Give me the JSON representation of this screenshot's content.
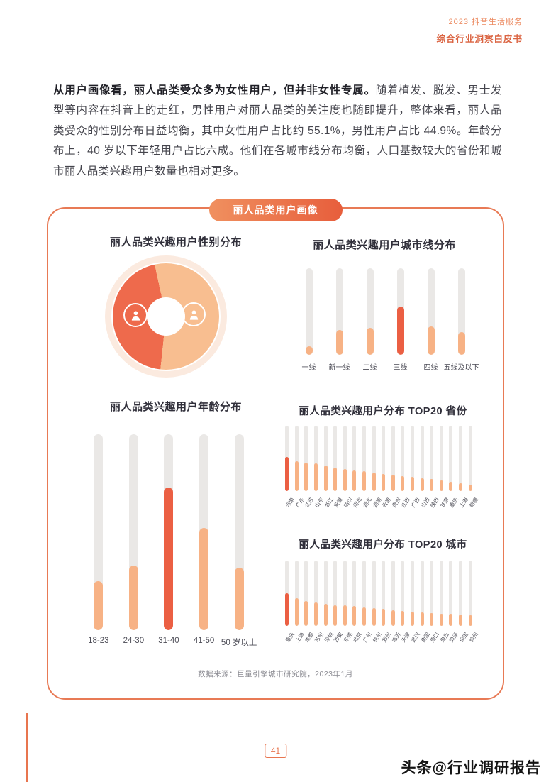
{
  "header": {
    "line1": "2023 抖音生活服务",
    "line2": "综合行业洞察白皮书"
  },
  "paragraph": {
    "lead": "从用户画像看，丽人品类受众多为女性用户，但并非女性专属。",
    "body": "随着植发、脱发、男士发型等内容在抖音上的走红，男性用户对丽人品类的关注度也随即提升，整体来看，丽人品类受众的性别分布日益均衡，其中女性用户占比约 55.1%，男性用户占比 44.9%。年龄分布上，40 岁以下年轻用户占比六成。他们在各城市线分布均衡，人口基数较大的省份和城市丽人品类兴趣用户数量也相对更多。"
  },
  "card": {
    "badge": "丽人品类用户画像",
    "source": "数据来源：巨量引擎城市研究院，2023年1月"
  },
  "colors": {
    "accent": "#E8754F",
    "highlight": "#EB5F43",
    "bar_fill": "#F7B285",
    "bar_track": "#EAE8E6",
    "donut_female": "#F8BE90",
    "donut_male": "#EE6A4C",
    "donut_ring": "#FBEADF"
  },
  "chart_data": [
    {
      "type": "pie",
      "title": "丽人品类兴趣用户性别分布",
      "slices": [
        {
          "label": "女性",
          "value": 55.1,
          "color": "#F8BE90"
        },
        {
          "label": "男性",
          "value": 44.9,
          "color": "#EE6A4C"
        }
      ]
    },
    {
      "type": "bar",
      "title": "丽人品类兴趣用户城市线分布",
      "categories": [
        "一线",
        "新一线",
        "二线",
        "三线",
        "四线",
        "五线及以下"
      ],
      "values": [
        10,
        29,
        31,
        56,
        33,
        26
      ],
      "highlight_index": 3
    },
    {
      "type": "bar",
      "title": "丽人品类兴趣用户年龄分布",
      "categories": [
        "18-23",
        "24-30",
        "31-40",
        "41-50",
        "50 岁以上"
      ],
      "values": [
        25,
        33,
        73,
        52,
        32
      ],
      "highlight_index": 2
    },
    {
      "type": "bar",
      "title": "丽人品类兴趣用户分布 TOP20 省份",
      "categories": [
        "河南",
        "广东",
        "江苏",
        "山东",
        "浙江",
        "安徽",
        "四川",
        "河北",
        "湖北",
        "湖南",
        "云南",
        "贵州",
        "江西",
        "广西",
        "山西",
        "陕西",
        "甘肃",
        "重庆",
        "上海",
        "新疆"
      ],
      "values": [
        52,
        46,
        44,
        42,
        39,
        36,
        34,
        32,
        30,
        28,
        26,
        25,
        23,
        22,
        20,
        18,
        16,
        14,
        12,
        10
      ],
      "highlight_index": 0
    },
    {
      "type": "bar",
      "title": "丽人品类兴趣用户分布 TOP20 城市",
      "categories": [
        "重庆",
        "上海",
        "成都",
        "苏州",
        "深圳",
        "西安",
        "东莞",
        "北京",
        "广州",
        "杭州",
        "郑州",
        "临沂",
        "天津",
        "武汉",
        "南阳",
        "周口",
        "商丘",
        "菏泽",
        "保定",
        "徐州"
      ],
      "values": [
        50,
        42,
        38,
        36,
        34,
        32,
        31,
        30,
        28,
        27,
        26,
        24,
        23,
        22,
        21,
        20,
        19,
        18,
        17,
        16
      ],
      "highlight_index": 0
    }
  ],
  "footer": {
    "page_number": "41",
    "watermark": "头条@行业调研报告"
  }
}
